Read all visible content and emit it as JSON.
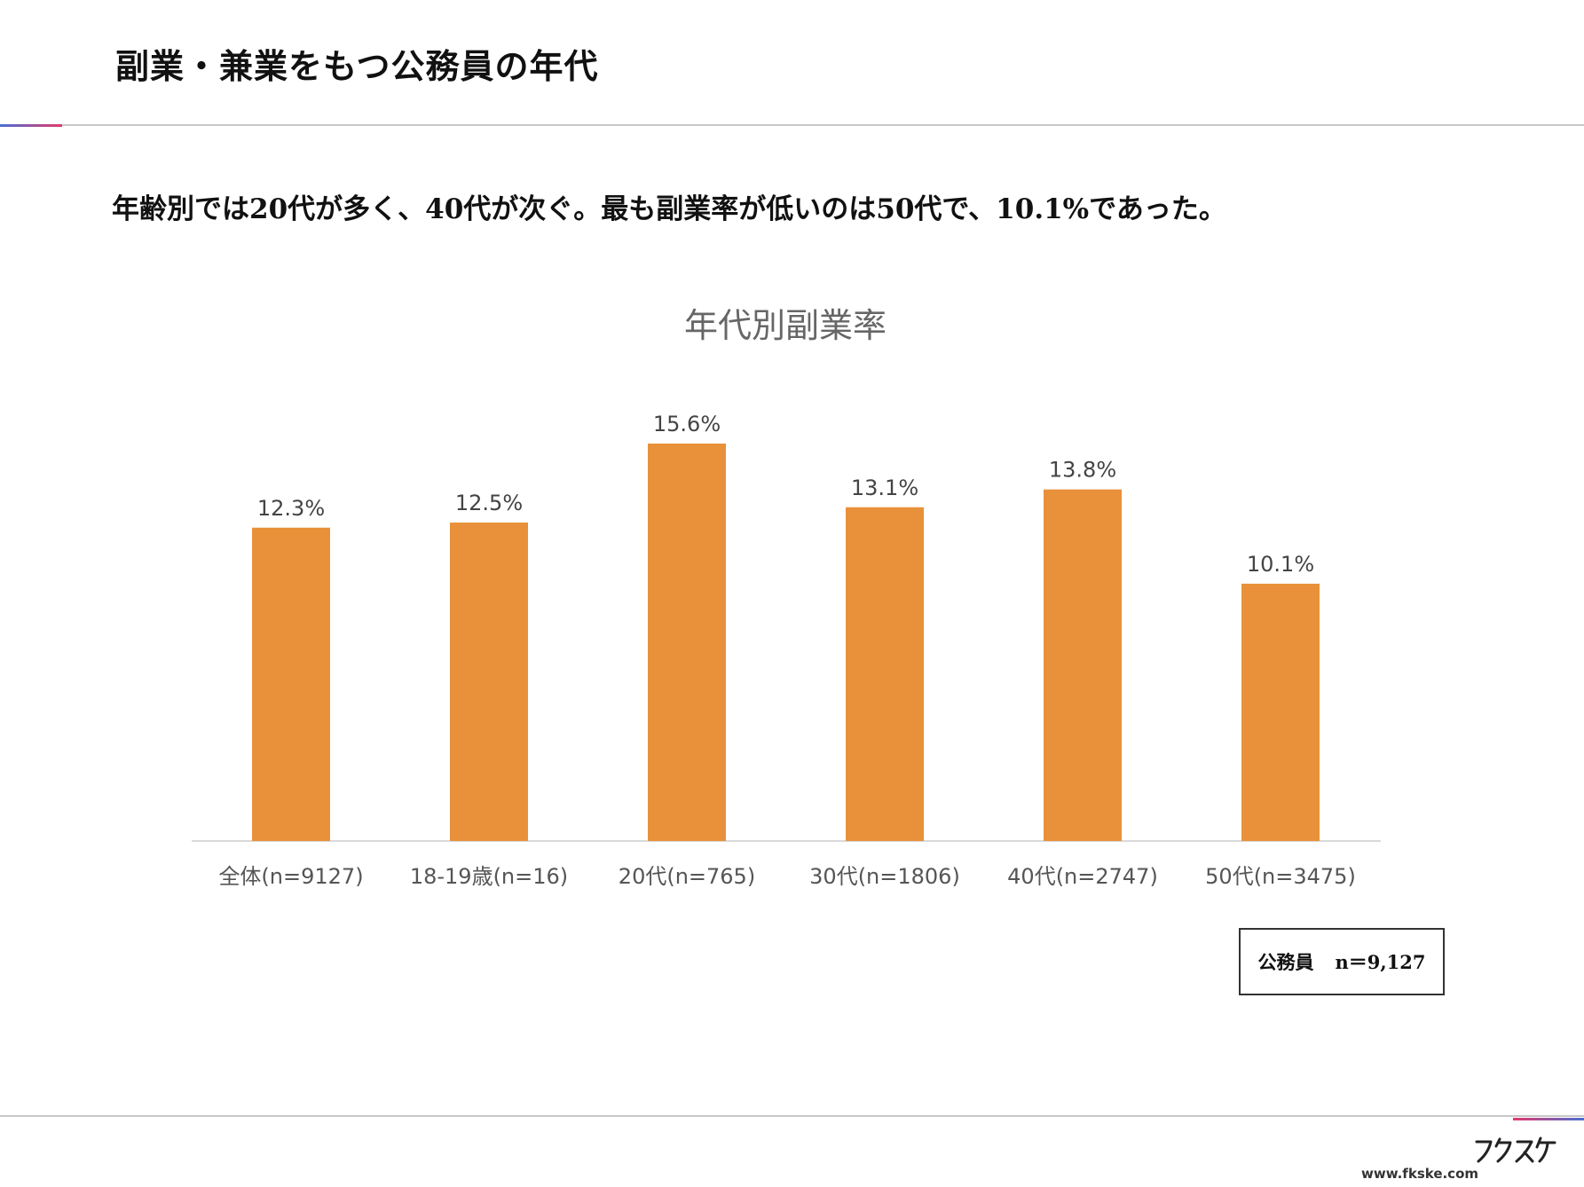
{
  "header": {
    "title": "副業・兼業をもつ公務員の年代"
  },
  "summary": "年齢別では20代が多く、40代が次ぐ。最も副業率が低いのは50代で、10.1%であった。",
  "chart_data": {
    "type": "bar",
    "title": "年代別副業率",
    "categories": [
      "全体(n=9127)",
      "18-19歳(n=16)",
      "20代(n=765)",
      "30代(n=1806)",
      "40代(n=2747)",
      "50代(n=3475)"
    ],
    "values": [
      12.3,
      12.5,
      15.6,
      13.1,
      13.8,
      10.1
    ],
    "value_labels": [
      "12.3%",
      "12.5%",
      "15.6%",
      "13.1%",
      "13.8%",
      "10.1%"
    ],
    "xlabel": "",
    "ylabel": "",
    "ylim": [
      0,
      15.6
    ],
    "grid": false,
    "legend": "none",
    "bar_color": "#E8913A",
    "axis_color": "#d9d9d9"
  },
  "sample_note": {
    "label": "公務員",
    "value": "n＝9,127"
  },
  "footer": {
    "brand_name": "フクスケ",
    "url": "www.fkske.com"
  }
}
